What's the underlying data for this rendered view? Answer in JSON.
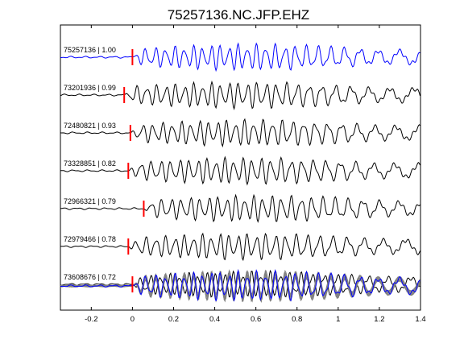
{
  "chart_data": {
    "type": "line",
    "title": "75257136.NC.JFP.EHZ",
    "xlabel": "",
    "ylabel": "",
    "xlim": [
      -0.35,
      1.4
    ],
    "xticks": [
      -0.2,
      0,
      0.2,
      0.4,
      0.6,
      0.8,
      1,
      1.2,
      1.4
    ],
    "xtick_labels": [
      "-0.2",
      "0",
      "0.2",
      "0.4",
      "0.6",
      "0.8",
      "1",
      "1.2",
      "1.4"
    ],
    "grid": false,
    "colors": {
      "master": "#0000ff",
      "trace": "#000000",
      "overlay": "#808080",
      "pick": "#ff0000"
    },
    "series": [
      {
        "label": "75257136 | 1.00",
        "pick_time": 0.0,
        "master": true,
        "seed": 1
      },
      {
        "label": "73201936 | 0.99",
        "pick_time": -0.04,
        "master": false,
        "seed": 2
      },
      {
        "label": "72480821 | 0.93",
        "pick_time": -0.01,
        "master": false,
        "seed": 3
      },
      {
        "label": "73328851 | 0.82",
        "pick_time": -0.02,
        "master": false,
        "seed": 4
      },
      {
        "label": "72966321 | 0.79",
        "pick_time": 0.055,
        "master": false,
        "seed": 5
      },
      {
        "label": "72979466 | 0.78",
        "pick_time": -0.02,
        "master": false,
        "seed": 6
      },
      {
        "label": "73608676 | 0.72",
        "pick_time": 0.0,
        "master": false,
        "seed": 7
      }
    ],
    "stack_panel": true
  }
}
